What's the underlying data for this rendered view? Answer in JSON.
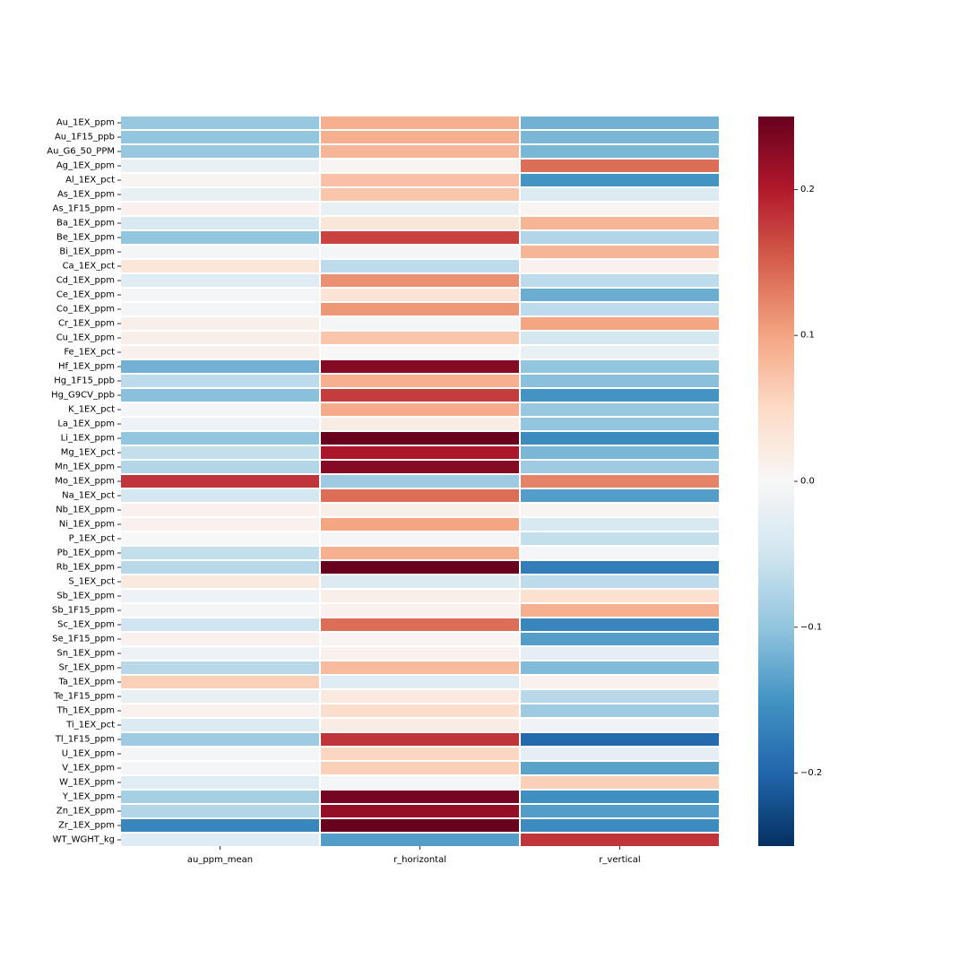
{
  "chart_data": {
    "type": "heatmap",
    "title": "",
    "xlabel": "",
    "ylabel": "",
    "columns": [
      "au_ppm_mean",
      "r_horizontal",
      "r_vertical"
    ],
    "rows": [
      "Au_1EX_ppm",
      "Au_1F15_ppb",
      "Au_G6_50_PPM",
      "Ag_1EX_ppm",
      "Al_1EX_pct",
      "As_1EX_ppm",
      "As_1F15_ppm",
      "Ba_1EX_ppm",
      "Be_1EX_ppm",
      "Bi_1EX_ppm",
      "Ca_1EX_pct",
      "Cd_1EX_ppm",
      "Ce_1EX_ppm",
      "Co_1EX_ppm",
      "Cr_1EX_ppm",
      "Cu_1EX_ppm",
      "Fe_1EX_pct",
      "Hf_1EX_ppm",
      "Hg_1F15_ppb",
      "Hg_G9CV_ppb",
      "K_1EX_pct",
      "La_1EX_ppm",
      "Li_1EX_ppm",
      "Mg_1EX_pct",
      "Mn_1EX_ppm",
      "Mo_1EX_ppm",
      "Na_1EX_pct",
      "Nb_1EX_ppm",
      "Ni_1EX_ppm",
      "P_1EX_pct",
      "Pb_1EX_ppm",
      "Rb_1EX_ppm",
      "S_1EX_pct",
      "Sb_1EX_ppm",
      "Sb_1F15_ppm",
      "Sc_1EX_ppm",
      "Se_1F15_ppm",
      "Sn_1EX_ppm",
      "Sr_1EX_ppm",
      "Ta_1EX_ppm",
      "Te_1F15_ppm",
      "Th_1EX_ppm",
      "Ti_1EX_pct",
      "Tl_1F15_ppm",
      "U_1EX_ppm",
      "V_1EX_ppm",
      "W_1EX_ppm",
      "Y_1EX_ppm",
      "Zn_1EX_ppm",
      "Zr_1EX_ppm",
      "WT_WGHT_kg"
    ],
    "values": [
      [
        -0.095,
        0.09,
        -0.12
      ],
      [
        -0.1,
        0.09,
        -0.115
      ],
      [
        -0.095,
        0.085,
        -0.115
      ],
      [
        -0.02,
        0.005,
        0.14
      ],
      [
        0.005,
        0.075,
        -0.15
      ],
      [
        -0.02,
        0.07,
        -0.035
      ],
      [
        0.01,
        -0.02,
        0.005
      ],
      [
        -0.04,
        0.03,
        0.085
      ],
      [
        -0.1,
        0.17,
        -0.075
      ],
      [
        -0.005,
        -0.005,
        0.085
      ],
      [
        0.03,
        -0.065,
        0.01
      ],
      [
        -0.03,
        0.115,
        -0.065
      ],
      [
        -0.005,
        0.035,
        -0.125
      ],
      [
        -0.005,
        0.11,
        -0.065
      ],
      [
        0.015,
        -0.005,
        0.1
      ],
      [
        0.015,
        0.07,
        -0.045
      ],
      [
        0.01,
        0.0,
        -0.02
      ],
      [
        -0.12,
        0.23,
        -0.1
      ],
      [
        -0.065,
        0.09,
        -0.105
      ],
      [
        -0.105,
        0.175,
        -0.15
      ],
      [
        -0.005,
        0.095,
        -0.095
      ],
      [
        -0.015,
        0.02,
        -0.1
      ],
      [
        -0.1,
        0.25,
        -0.16
      ],
      [
        -0.06,
        0.205,
        -0.115
      ],
      [
        -0.075,
        0.23,
        -0.09
      ],
      [
        0.18,
        -0.09,
        0.125
      ],
      [
        -0.045,
        0.14,
        -0.14
      ],
      [
        0.01,
        0.015,
        0.005
      ],
      [
        0.01,
        0.1,
        -0.04
      ],
      [
        0.0,
        -0.005,
        -0.06
      ],
      [
        -0.06,
        0.09,
        -0.005
      ],
      [
        -0.07,
        0.25,
        -0.175
      ],
      [
        0.025,
        -0.035,
        -0.065
      ],
      [
        -0.015,
        0.015,
        0.04
      ],
      [
        -0.005,
        0.01,
        0.09
      ],
      [
        -0.05,
        0.14,
        -0.165
      ],
      [
        0.01,
        0.005,
        -0.14
      ],
      [
        -0.015,
        0.01,
        -0.025
      ],
      [
        -0.07,
        0.08,
        -0.11
      ],
      [
        0.06,
        -0.03,
        0.01
      ],
      [
        -0.02,
        0.025,
        -0.07
      ],
      [
        0.01,
        0.045,
        -0.09
      ],
      [
        -0.035,
        0.02,
        -0.01
      ],
      [
        -0.09,
        0.18,
        -0.195
      ],
      [
        -0.005,
        0.055,
        -0.025
      ],
      [
        -0.005,
        0.06,
        -0.135
      ],
      [
        -0.03,
        -0.005,
        0.06
      ],
      [
        -0.085,
        0.24,
        -0.155
      ],
      [
        -0.075,
        0.22,
        -0.14
      ],
      [
        -0.165,
        0.25,
        -0.16
      ],
      [
        -0.03,
        -0.14,
        0.18
      ]
    ],
    "colorbar": {
      "vmin": -0.25,
      "vmax": 0.25,
      "ticks": [
        0.2,
        0.1,
        0.0,
        -0.1,
        -0.2
      ],
      "tick_labels": [
        "0.2",
        "0.1",
        "0.0",
        "−0.1",
        "−0.2"
      ],
      "colormap": "RdBu_r",
      "colors": [
        "#053061",
        "#2166ac",
        "#4393c3",
        "#92c5de",
        "#d1e5f0",
        "#f7f7f7",
        "#fddbc7",
        "#f4a582",
        "#d6604d",
        "#b2182b",
        "#67001f"
      ]
    },
    "grid_line_color": "#ffffff",
    "legend": "right"
  }
}
